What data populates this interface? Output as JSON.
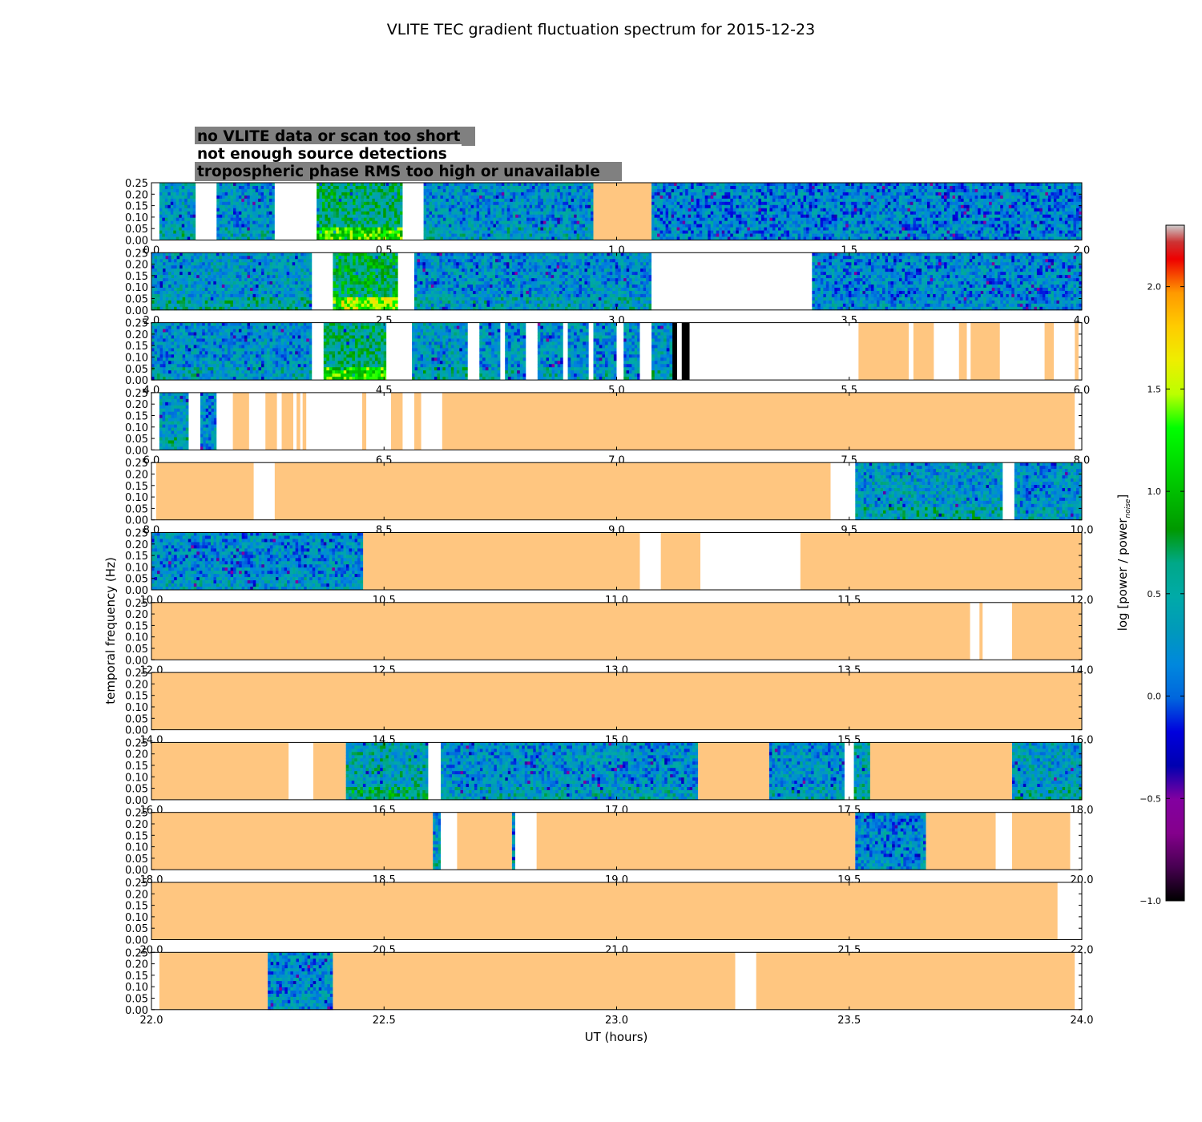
{
  "chart_data": {
    "type": "heatmap",
    "title": "VLITE TEC gradient fluctuation spectrum for 2015-12-23",
    "xlabel": "UT (hours)",
    "ylabel": "temporal frequency (Hz)",
    "ylim": [
      0,
      0.25
    ],
    "yticks": [
      "0.00",
      "0.05",
      "0.10",
      "0.15",
      "0.20",
      "0.25"
    ],
    "colorbar": {
      "label": "log [power / power",
      "label_sub": "noise",
      "label_end": "]",
      "range": [
        -1.0,
        2.3
      ],
      "ticks": [
        "−1.0",
        "−0.5",
        "0.0",
        "0.5",
        "1.0",
        "1.5",
        "2.0"
      ],
      "tick_values": [
        -1.0,
        -0.5,
        0.0,
        0.5,
        1.0,
        1.5,
        2.0
      ],
      "colormap": "nipy_spectral"
    },
    "legend": [
      {
        "label": "no VLITE data or scan too short",
        "text_color": "#ffffff",
        "box_color": "#808080"
      },
      {
        "label": "not enough source detections",
        "text_color": "#000000",
        "box_color": "#ffffff"
      },
      {
        "label": "tropospheric phase RMS too high or unavailable",
        "text_color": "#ffc880",
        "box_color": "#808080"
      }
    ],
    "category_colors": {
      "no_data": "#ffffff",
      "few_detections": "#000000",
      "high_rms": "#ffc680"
    },
    "panels": [
      {
        "xlim": [
          0.0,
          2.0
        ],
        "xticks": [
          "0.0",
          "0.5",
          "1.0",
          "1.5",
          "2.0"
        ],
        "segments": [
          {
            "start": 0.017,
            "end": 0.095,
            "kind": "data",
            "level": 0.3
          },
          {
            "start": 0.095,
            "end": 0.14,
            "kind": "no_data"
          },
          {
            "start": 0.14,
            "end": 0.265,
            "kind": "data",
            "level": 0.2
          },
          {
            "start": 0.265,
            "end": 0.355,
            "kind": "no_data"
          },
          {
            "start": 0.355,
            "end": 0.54,
            "kind": "data",
            "level": 0.9
          },
          {
            "start": 0.54,
            "end": 0.585,
            "kind": "no_data"
          },
          {
            "start": 0.585,
            "end": 0.95,
            "kind": "data",
            "level": 0.2
          },
          {
            "start": 0.95,
            "end": 1.075,
            "kind": "high_rms"
          },
          {
            "start": 1.075,
            "end": 2.0,
            "kind": "data",
            "level": 0.05
          }
        ]
      },
      {
        "xlim": [
          2.0,
          4.0
        ],
        "xticks": [
          "2.0",
          "2.5",
          "3.0",
          "3.5",
          "4.0"
        ],
        "segments": [
          {
            "start": 2.0,
            "end": 2.345,
            "kind": "data",
            "level": 0.3
          },
          {
            "start": 2.345,
            "end": 2.39,
            "kind": "no_data"
          },
          {
            "start": 2.39,
            "end": 2.53,
            "kind": "data",
            "level": 1.1
          },
          {
            "start": 2.53,
            "end": 2.565,
            "kind": "no_data"
          },
          {
            "start": 2.565,
            "end": 3.075,
            "kind": "data",
            "level": 0.2
          },
          {
            "start": 3.075,
            "end": 3.42,
            "kind": "no_data"
          },
          {
            "start": 3.42,
            "end": 4.0,
            "kind": "data",
            "level": 0.1
          }
        ]
      },
      {
        "xlim": [
          4.0,
          6.0
        ],
        "xticks": [
          "4.0",
          "4.5",
          "5.0",
          "5.5",
          "6.0"
        ],
        "segments": [
          {
            "start": 4.0,
            "end": 4.345,
            "kind": "data",
            "level": 0.2
          },
          {
            "start": 4.345,
            "end": 4.37,
            "kind": "no_data"
          },
          {
            "start": 4.37,
            "end": 4.505,
            "kind": "data",
            "level": 0.9
          },
          {
            "start": 4.505,
            "end": 4.56,
            "kind": "no_data"
          },
          {
            "start": 4.56,
            "end": 4.68,
            "kind": "data",
            "level": 0.3
          },
          {
            "start": 4.68,
            "end": 4.705,
            "kind": "no_data"
          },
          {
            "start": 4.705,
            "end": 4.75,
            "kind": "data",
            "level": 0.2
          },
          {
            "start": 4.75,
            "end": 4.76,
            "kind": "no_data"
          },
          {
            "start": 4.76,
            "end": 4.805,
            "kind": "data",
            "level": 0.2
          },
          {
            "start": 4.805,
            "end": 4.83,
            "kind": "no_data"
          },
          {
            "start": 4.83,
            "end": 4.885,
            "kind": "data",
            "level": 0.2
          },
          {
            "start": 4.885,
            "end": 4.895,
            "kind": "no_data"
          },
          {
            "start": 4.895,
            "end": 4.94,
            "kind": "data",
            "level": 0.2
          },
          {
            "start": 4.94,
            "end": 4.95,
            "kind": "no_data"
          },
          {
            "start": 4.95,
            "end": 5.0,
            "kind": "data",
            "level": 0.2
          },
          {
            "start": 5.0,
            "end": 5.015,
            "kind": "no_data"
          },
          {
            "start": 5.015,
            "end": 5.05,
            "kind": "data",
            "level": 0.2
          },
          {
            "start": 5.05,
            "end": 5.075,
            "kind": "no_data"
          },
          {
            "start": 5.075,
            "end": 5.12,
            "kind": "data",
            "level": 0.3
          },
          {
            "start": 5.12,
            "end": 5.13,
            "kind": "few_detections"
          },
          {
            "start": 5.13,
            "end": 5.14,
            "kind": "no_data"
          },
          {
            "start": 5.14,
            "end": 5.157,
            "kind": "few_detections"
          },
          {
            "start": 5.157,
            "end": 5.52,
            "kind": "no_data"
          },
          {
            "start": 5.52,
            "end": 5.628,
            "kind": "high_rms"
          },
          {
            "start": 5.628,
            "end": 5.638,
            "kind": "no_data"
          },
          {
            "start": 5.638,
            "end": 5.682,
            "kind": "high_rms"
          },
          {
            "start": 5.682,
            "end": 5.736,
            "kind": "no_data"
          },
          {
            "start": 5.736,
            "end": 5.753,
            "kind": "high_rms"
          },
          {
            "start": 5.753,
            "end": 5.761,
            "kind": "no_data"
          },
          {
            "start": 5.761,
            "end": 5.824,
            "kind": "high_rms"
          },
          {
            "start": 5.824,
            "end": 5.92,
            "kind": "no_data"
          },
          {
            "start": 5.92,
            "end": 5.94,
            "kind": "high_rms"
          },
          {
            "start": 5.94,
            "end": 5.985,
            "kind": "no_data"
          },
          {
            "start": 5.985,
            "end": 5.993,
            "kind": "high_rms"
          },
          {
            "start": 5.993,
            "end": 6.0,
            "kind": "no_data"
          }
        ]
      },
      {
        "xlim": [
          6.0,
          8.0
        ],
        "xticks": [
          "6.0",
          "6.5",
          "7.0",
          "7.5",
          "8.0"
        ],
        "segments": [
          {
            "start": 6.0,
            "end": 6.017,
            "kind": "no_data"
          },
          {
            "start": 6.017,
            "end": 6.08,
            "kind": "data",
            "level": 0.3
          },
          {
            "start": 6.08,
            "end": 6.105,
            "kind": "no_data"
          },
          {
            "start": 6.105,
            "end": 6.14,
            "kind": "data",
            "level": 0.1
          },
          {
            "start": 6.14,
            "end": 6.175,
            "kind": "no_data"
          },
          {
            "start": 6.175,
            "end": 6.21,
            "kind": "high_rms"
          },
          {
            "start": 6.21,
            "end": 6.245,
            "kind": "no_data"
          },
          {
            "start": 6.245,
            "end": 6.27,
            "kind": "high_rms"
          },
          {
            "start": 6.27,
            "end": 6.28,
            "kind": "no_data"
          },
          {
            "start": 6.28,
            "end": 6.305,
            "kind": "high_rms"
          },
          {
            "start": 6.305,
            "end": 6.312,
            "kind": "no_data"
          },
          {
            "start": 6.312,
            "end": 6.32,
            "kind": "high_rms"
          },
          {
            "start": 6.32,
            "end": 6.325,
            "kind": "no_data"
          },
          {
            "start": 6.325,
            "end": 6.333,
            "kind": "high_rms"
          },
          {
            "start": 6.333,
            "end": 6.453,
            "kind": "no_data"
          },
          {
            "start": 6.453,
            "end": 6.462,
            "kind": "high_rms"
          },
          {
            "start": 6.462,
            "end": 6.515,
            "kind": "no_data"
          },
          {
            "start": 6.515,
            "end": 6.54,
            "kind": "high_rms"
          },
          {
            "start": 6.54,
            "end": 6.565,
            "kind": "no_data"
          },
          {
            "start": 6.565,
            "end": 6.58,
            "kind": "high_rms"
          },
          {
            "start": 6.58,
            "end": 6.625,
            "kind": "no_data"
          },
          {
            "start": 6.625,
            "end": 7.985,
            "kind": "high_rms"
          },
          {
            "start": 7.985,
            "end": 8.0,
            "kind": "no_data"
          }
        ]
      },
      {
        "xlim": [
          8.0,
          10.0
        ],
        "xticks": [
          "8.0",
          "8.5",
          "9.0",
          "9.5",
          "10.0"
        ],
        "segments": [
          {
            "start": 8.0,
            "end": 8.01,
            "kind": "no_data"
          },
          {
            "start": 8.01,
            "end": 8.22,
            "kind": "high_rms"
          },
          {
            "start": 8.22,
            "end": 8.265,
            "kind": "no_data"
          },
          {
            "start": 8.265,
            "end": 9.46,
            "kind": "high_rms"
          },
          {
            "start": 9.46,
            "end": 9.513,
            "kind": "no_data"
          },
          {
            "start": 9.513,
            "end": 9.83,
            "kind": "data",
            "level": 0.3
          },
          {
            "start": 9.83,
            "end": 9.855,
            "kind": "no_data"
          },
          {
            "start": 9.855,
            "end": 10.0,
            "kind": "data",
            "level": 0.2
          }
        ]
      },
      {
        "xlim": [
          10.0,
          12.0
        ],
        "xticks": [
          "10.0",
          "10.5",
          "11.0",
          "11.5",
          "12.0"
        ],
        "segments": [
          {
            "start": 10.0,
            "end": 10.455,
            "kind": "data",
            "level": 0.15
          },
          {
            "start": 10.455,
            "end": 11.05,
            "kind": "high_rms"
          },
          {
            "start": 11.05,
            "end": 11.095,
            "kind": "no_data"
          },
          {
            "start": 11.095,
            "end": 11.18,
            "kind": "high_rms"
          },
          {
            "start": 11.18,
            "end": 11.395,
            "kind": "no_data"
          },
          {
            "start": 11.395,
            "end": 12.0,
            "kind": "high_rms"
          }
        ]
      },
      {
        "xlim": [
          12.0,
          14.0
        ],
        "xticks": [
          "12.0",
          "12.5",
          "13.0",
          "13.5",
          "14.0"
        ],
        "segments": [
          {
            "start": 12.0,
            "end": 13.76,
            "kind": "high_rms"
          },
          {
            "start": 13.76,
            "end": 13.78,
            "kind": "no_data"
          },
          {
            "start": 13.78,
            "end": 13.787,
            "kind": "high_rms"
          },
          {
            "start": 13.787,
            "end": 13.85,
            "kind": "no_data"
          },
          {
            "start": 13.85,
            "end": 14.0,
            "kind": "high_rms"
          }
        ]
      },
      {
        "xlim": [
          14.0,
          16.0
        ],
        "xticks": [
          "14.0",
          "14.5",
          "15.0",
          "15.5",
          "16.0"
        ],
        "segments": [
          {
            "start": 14.0,
            "end": 16.0,
            "kind": "high_rms"
          }
        ]
      },
      {
        "xlim": [
          16.0,
          18.0
        ],
        "xticks": [
          "16.0",
          "16.5",
          "17.0",
          "17.5",
          "18.0"
        ],
        "segments": [
          {
            "start": 16.0,
            "end": 16.295,
            "kind": "high_rms"
          },
          {
            "start": 16.295,
            "end": 16.348,
            "kind": "no_data"
          },
          {
            "start": 16.348,
            "end": 16.418,
            "kind": "high_rms"
          },
          {
            "start": 16.418,
            "end": 16.595,
            "kind": "data",
            "level": 0.5
          },
          {
            "start": 16.595,
            "end": 16.622,
            "kind": "no_data"
          },
          {
            "start": 16.622,
            "end": 17.175,
            "kind": "data",
            "level": 0.2
          },
          {
            "start": 17.175,
            "end": 17.328,
            "kind": "high_rms"
          },
          {
            "start": 17.328,
            "end": 17.49,
            "kind": "data",
            "level": 0.2
          },
          {
            "start": 17.49,
            "end": 17.51,
            "kind": "no_data"
          },
          {
            "start": 17.51,
            "end": 17.545,
            "kind": "data",
            "level": 0.4
          },
          {
            "start": 17.545,
            "end": 17.85,
            "kind": "high_rms"
          },
          {
            "start": 17.85,
            "end": 18.0,
            "kind": "data",
            "level": 0.3
          }
        ]
      },
      {
        "xlim": [
          18.0,
          20.0
        ],
        "xticks": [
          "18.0",
          "18.5",
          "19.0",
          "19.5",
          "20.0"
        ],
        "segments": [
          {
            "start": 18.0,
            "end": 18.605,
            "kind": "high_rms"
          },
          {
            "start": 18.605,
            "end": 18.622,
            "kind": "data",
            "level": 0.3
          },
          {
            "start": 18.622,
            "end": 18.657,
            "kind": "no_data"
          },
          {
            "start": 18.657,
            "end": 18.775,
            "kind": "high_rms"
          },
          {
            "start": 18.775,
            "end": 18.782,
            "kind": "data",
            "level": 0.3
          },
          {
            "start": 18.782,
            "end": 18.828,
            "kind": "no_data"
          },
          {
            "start": 18.828,
            "end": 19.513,
            "kind": "high_rms"
          },
          {
            "start": 19.513,
            "end": 19.665,
            "kind": "data",
            "level": 0.1
          },
          {
            "start": 19.665,
            "end": 19.815,
            "kind": "high_rms"
          },
          {
            "start": 19.815,
            "end": 19.85,
            "kind": "no_data"
          },
          {
            "start": 19.85,
            "end": 19.975,
            "kind": "high_rms"
          },
          {
            "start": 19.975,
            "end": 20.0,
            "kind": "no_data"
          }
        ]
      },
      {
        "xlim": [
          20.0,
          22.0
        ],
        "xticks": [
          "20.0",
          "20.5",
          "21.0",
          "21.5",
          "22.0"
        ],
        "segments": [
          {
            "start": 20.0,
            "end": 21.948,
            "kind": "high_rms"
          },
          {
            "start": 21.948,
            "end": 22.0,
            "kind": "no_data"
          }
        ]
      },
      {
        "xlim": [
          22.0,
          24.0
        ],
        "xticks": [
          "22.0",
          "22.5",
          "23.0",
          "23.5",
          "24.0"
        ],
        "segments": [
          {
            "start": 22.0,
            "end": 22.017,
            "kind": "no_data"
          },
          {
            "start": 22.017,
            "end": 22.25,
            "kind": "high_rms"
          },
          {
            "start": 22.25,
            "end": 22.39,
            "kind": "data",
            "level": 0.1
          },
          {
            "start": 22.39,
            "end": 23.255,
            "kind": "high_rms"
          },
          {
            "start": 23.255,
            "end": 23.3,
            "kind": "no_data"
          },
          {
            "start": 23.3,
            "end": 23.985,
            "kind": "high_rms"
          },
          {
            "start": 23.985,
            "end": 24.0,
            "kind": "no_data"
          }
        ]
      }
    ]
  }
}
